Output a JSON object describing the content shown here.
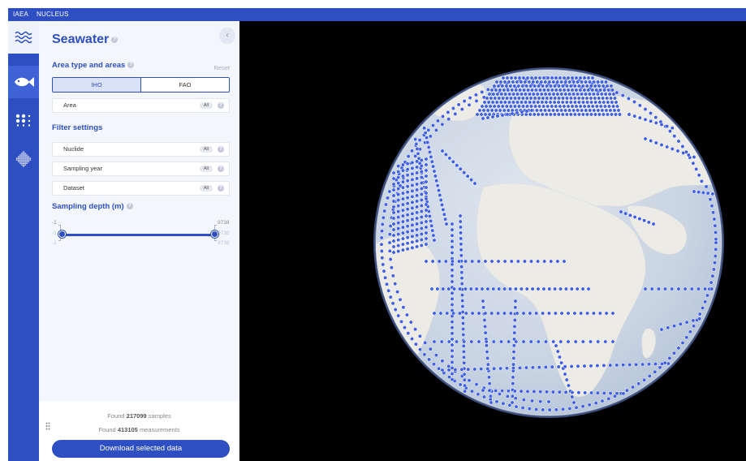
{
  "topbar": {
    "org": "IAEA",
    "app": "NUCLEUS"
  },
  "sidebar_icons": [
    "waves-icon",
    "fish-icon",
    "dots-grid-icon",
    "checker-pattern-icon"
  ],
  "panel": {
    "title": "Seawater",
    "area_section": "Area type and areas",
    "reset": "Reset",
    "area_types": [
      "IHO",
      "FAO"
    ],
    "area_field": "Area",
    "filter_section": "Filter settings",
    "filters": [
      "Nuclide",
      "Sampling year",
      "Dataset"
    ],
    "all_badge": "All",
    "collapse_glyph": "‹",
    "help_glyph": "?",
    "depth_section": "Sampling depth (m)",
    "depth_min": "-1",
    "depth_max": "9738"
  },
  "footer": {
    "found_prefix": "Found",
    "samples_count": "217099",
    "samples_suffix": "samples",
    "measurements_count": "413105",
    "measurements_suffix": "measurements",
    "download_label": "Download selected data"
  },
  "colors": {
    "brand": "#2d4fc1",
    "panel_bg": "#f3f6fc",
    "map_bg": "#000000",
    "ocean": "#cfd9e6",
    "land": "#ecebe7",
    "sample_dot": "#3f5fe0"
  }
}
